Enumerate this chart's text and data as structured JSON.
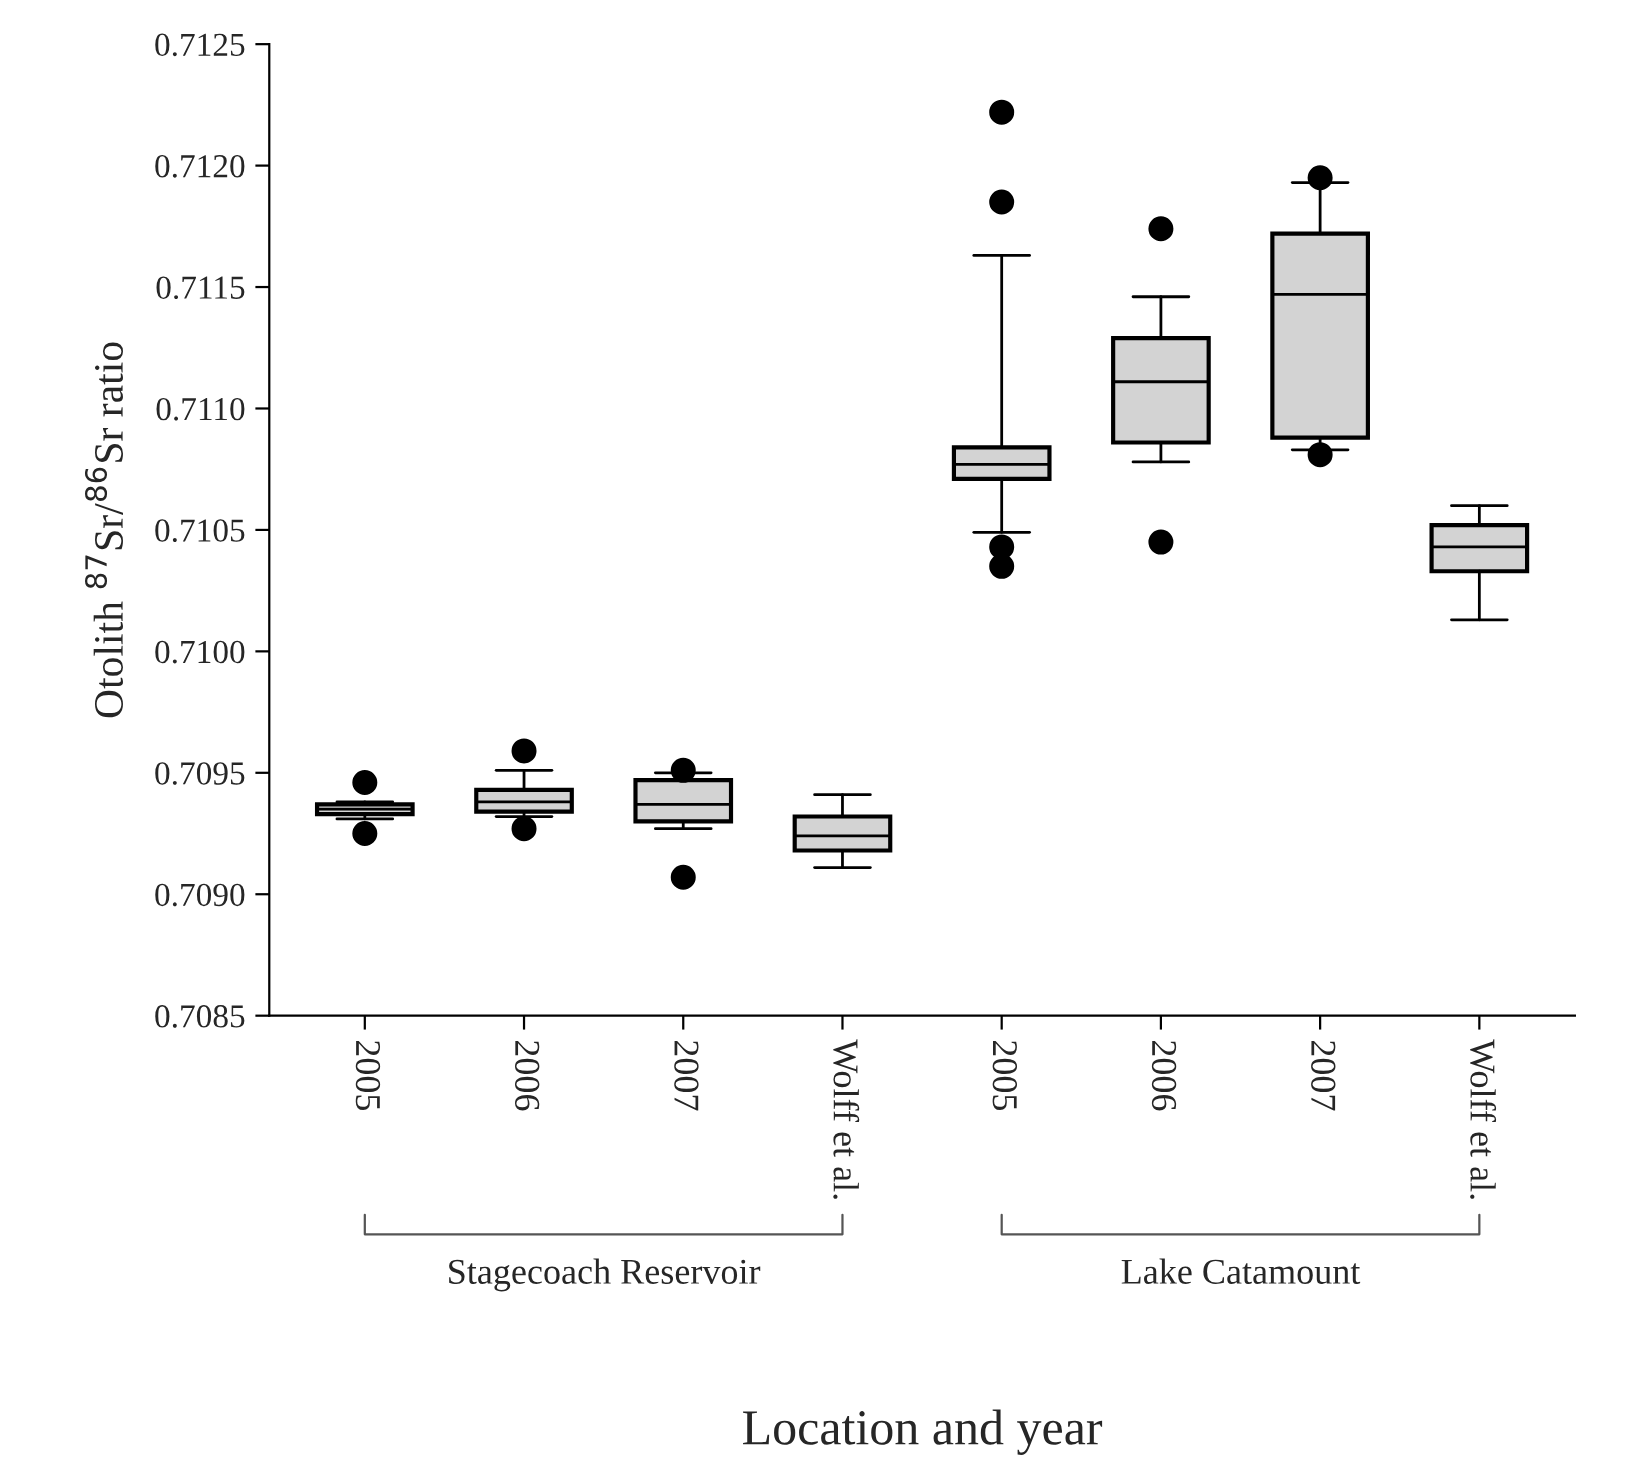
{
  "chart_data": {
    "type": "box",
    "xlabel": "Location and year",
    "ylabel": "Otolith $^{87}$Sr/$^{86}$Sr ratio",
    "categories": [
      "2005",
      "2006",
      "2007",
      "Wolff et al.",
      "2005",
      "2006",
      "2007",
      "Wolff et al."
    ],
    "color": "#d3d3d3",
    "boxes": [
      {
        "low": 0.70931,
        "q1": 0.70933,
        "median": 0.70935,
        "q3": 0.70937,
        "high": 0.70938,
        "outliers": [
          0.70946,
          0.70925
        ]
      },
      {
        "low": 0.70932,
        "q1": 0.70934,
        "median": 0.70938,
        "q3": 0.70943,
        "high": 0.70951,
        "outliers": [
          0.70959,
          0.70927
        ]
      },
      {
        "low": 0.70927,
        "q1": 0.7093,
        "median": 0.70937,
        "q3": 0.70947,
        "high": 0.7095,
        "outliers": [
          0.70951,
          0.70907
        ]
      },
      {
        "low": 0.70911,
        "q1": 0.70918,
        "median": 0.70924,
        "q3": 0.70932,
        "high": 0.70941
      },
      {
        "low": 0.71049,
        "q1": 0.71071,
        "median": 0.71077,
        "q3": 0.71084,
        "high": 0.71163,
        "outliers": [
          0.71222,
          0.71185,
          0.71043,
          0.71035
        ]
      },
      {
        "low": 0.71078,
        "q1": 0.71086,
        "median": 0.71111,
        "q3": 0.71129,
        "high": 0.71146,
        "outliers": [
          0.71174,
          0.71045
        ]
      },
      {
        "low": 0.71083,
        "q1": 0.71088,
        "median": 0.71147,
        "q3": 0.71172,
        "high": 0.71193,
        "outliers": [
          0.71195,
          0.71081
        ]
      },
      {
        "low": 0.71013,
        "q1": 0.71033,
        "median": 0.71043,
        "q3": 0.71052,
        "high": 0.7106
      }
    ],
    "ylim": [
      0.7085,
      0.7125
    ],
    "yticks": [
      {
        "value": 0.7085,
        "label": "0.7085"
      },
      {
        "value": 0.709,
        "label": "0.7090"
      },
      {
        "value": 0.7095,
        "label": "0.7095"
      },
      {
        "value": 0.71,
        "label": "0.7100"
      },
      {
        "value": 0.7105,
        "label": "0.7105"
      },
      {
        "value": 0.711,
        "label": "0.7110"
      },
      {
        "value": 0.7115,
        "label": "0.7115"
      },
      {
        "value": 0.712,
        "label": "0.7120"
      },
      {
        "value": 0.7125,
        "label": "0.7125"
      }
    ],
    "grid": false,
    "annotations": [
      "Stagecoach Reservoir",
      "Lake Catamount"
    ]
  }
}
